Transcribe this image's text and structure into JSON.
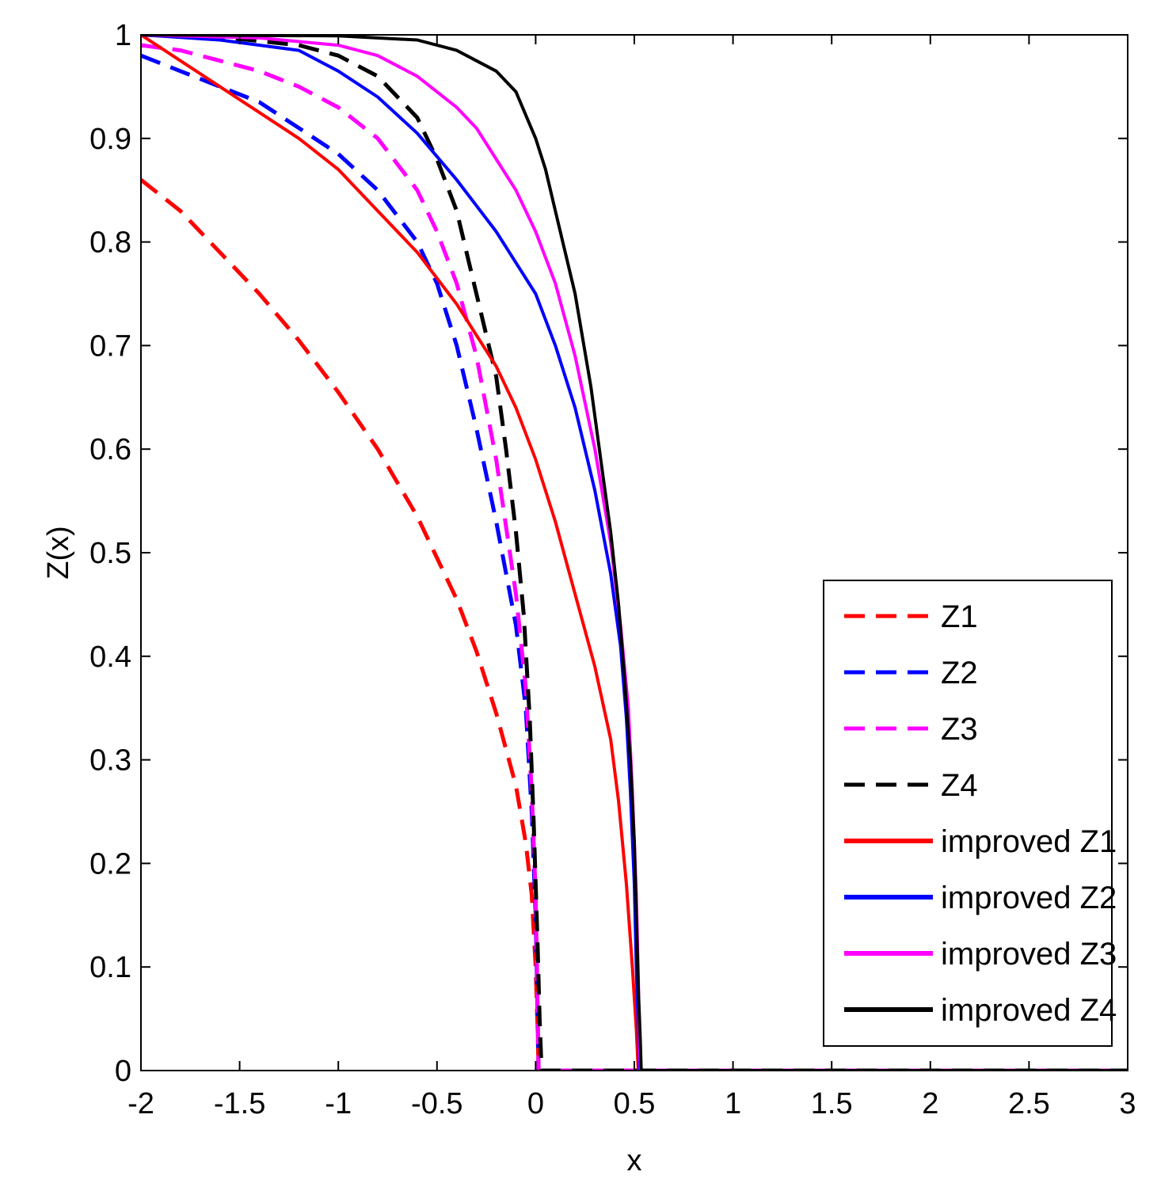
{
  "chart_data": {
    "type": "line",
    "title": "",
    "xlabel": "x",
    "ylabel": "Z(x)",
    "xlim": [
      -2,
      3
    ],
    "ylim": [
      0,
      1
    ],
    "xticks": [
      "-2",
      "-1.5",
      "-1",
      "-0.5",
      "0",
      "0.5",
      "1",
      "1.5",
      "2",
      "2.5",
      "3"
    ],
    "yticks": [
      "0",
      "0.1",
      "0.2",
      "0.3",
      "0.4",
      "0.5",
      "0.6",
      "0.7",
      "0.8",
      "0.9",
      "1"
    ],
    "grid": false,
    "legend_position": "bottom-right",
    "series": [
      {
        "name": "Z1",
        "color": "#ff0000",
        "style": "dashed",
        "points": [
          [
            -2,
            0.86
          ],
          [
            -1.8,
            0.83
          ],
          [
            -1.6,
            0.79
          ],
          [
            -1.4,
            0.75
          ],
          [
            -1.2,
            0.705
          ],
          [
            -1.0,
            0.655
          ],
          [
            -0.8,
            0.6
          ],
          [
            -0.6,
            0.535
          ],
          [
            -0.4,
            0.455
          ],
          [
            -0.3,
            0.405
          ],
          [
            -0.2,
            0.345
          ],
          [
            -0.1,
            0.275
          ],
          [
            -0.05,
            0.22
          ],
          [
            -0.02,
            0.17
          ],
          [
            0.0,
            0.1
          ],
          [
            0.01,
            0.04
          ],
          [
            0.015,
            0.0
          ],
          [
            3,
            0.0
          ]
        ]
      },
      {
        "name": "Z2",
        "color": "#0000ff",
        "style": "dashed",
        "points": [
          [
            -2,
            0.98
          ],
          [
            -1.8,
            0.965
          ],
          [
            -1.6,
            0.95
          ],
          [
            -1.4,
            0.935
          ],
          [
            -1.2,
            0.91
          ],
          [
            -1.0,
            0.885
          ],
          [
            -0.8,
            0.85
          ],
          [
            -0.6,
            0.8
          ],
          [
            -0.5,
            0.76
          ],
          [
            -0.4,
            0.7
          ],
          [
            -0.3,
            0.62
          ],
          [
            -0.2,
            0.53
          ],
          [
            -0.1,
            0.43
          ],
          [
            -0.05,
            0.35
          ],
          [
            -0.02,
            0.25
          ],
          [
            0.0,
            0.15
          ],
          [
            0.01,
            0.05
          ],
          [
            0.015,
            0.0
          ],
          [
            3,
            0.0
          ]
        ]
      },
      {
        "name": "Z3",
        "color": "#ff00ff",
        "style": "dashed",
        "points": [
          [
            -2,
            0.99
          ],
          [
            -1.8,
            0.985
          ],
          [
            -1.6,
            0.975
          ],
          [
            -1.4,
            0.965
          ],
          [
            -1.2,
            0.95
          ],
          [
            -1.0,
            0.93
          ],
          [
            -0.8,
            0.9
          ],
          [
            -0.6,
            0.85
          ],
          [
            -0.5,
            0.81
          ],
          [
            -0.4,
            0.76
          ],
          [
            -0.3,
            0.69
          ],
          [
            -0.2,
            0.59
          ],
          [
            -0.1,
            0.46
          ],
          [
            -0.05,
            0.37
          ],
          [
            -0.02,
            0.27
          ],
          [
            0.0,
            0.17
          ],
          [
            0.01,
            0.06
          ],
          [
            0.015,
            0.0
          ],
          [
            3,
            0.0
          ]
        ]
      },
      {
        "name": "Z4",
        "color": "#000000",
        "style": "dashed",
        "points": [
          [
            -2,
            1.0
          ],
          [
            -1.6,
            0.998
          ],
          [
            -1.2,
            0.99
          ],
          [
            -1.0,
            0.98
          ],
          [
            -0.8,
            0.96
          ],
          [
            -0.6,
            0.92
          ],
          [
            -0.5,
            0.88
          ],
          [
            -0.4,
            0.83
          ],
          [
            -0.3,
            0.75
          ],
          [
            -0.2,
            0.67
          ],
          [
            -0.15,
            0.6
          ],
          [
            -0.1,
            0.52
          ],
          [
            -0.06,
            0.44
          ],
          [
            -0.03,
            0.34
          ],
          [
            -0.01,
            0.24
          ],
          [
            0.01,
            0.12
          ],
          [
            0.02,
            0.05
          ],
          [
            0.03,
            0.0
          ],
          [
            3,
            0.0
          ]
        ]
      },
      {
        "name": "improved Z1",
        "color": "#ff0000",
        "style": "solid",
        "points": [
          [
            -2,
            1.0
          ],
          [
            -1.8,
            0.975
          ],
          [
            -1.6,
            0.95
          ],
          [
            -1.4,
            0.925
          ],
          [
            -1.2,
            0.9
          ],
          [
            -1.0,
            0.87
          ],
          [
            -0.8,
            0.83
          ],
          [
            -0.6,
            0.79
          ],
          [
            -0.4,
            0.74
          ],
          [
            -0.3,
            0.71
          ],
          [
            -0.2,
            0.68
          ],
          [
            -0.1,
            0.64
          ],
          [
            0.0,
            0.59
          ],
          [
            0.1,
            0.53
          ],
          [
            0.2,
            0.46
          ],
          [
            0.3,
            0.39
          ],
          [
            0.38,
            0.32
          ],
          [
            0.42,
            0.26
          ],
          [
            0.46,
            0.18
          ],
          [
            0.49,
            0.1
          ],
          [
            0.51,
            0.04
          ],
          [
            0.52,
            0.0
          ],
          [
            3,
            0.0
          ]
        ]
      },
      {
        "name": "improved Z2",
        "color": "#0000ff",
        "style": "solid",
        "points": [
          [
            -2,
            1.0
          ],
          [
            -1.6,
            0.995
          ],
          [
            -1.2,
            0.985
          ],
          [
            -1.0,
            0.965
          ],
          [
            -0.8,
            0.94
          ],
          [
            -0.6,
            0.905
          ],
          [
            -0.4,
            0.86
          ],
          [
            -0.2,
            0.81
          ],
          [
            -0.1,
            0.78
          ],
          [
            0.0,
            0.75
          ],
          [
            0.1,
            0.7
          ],
          [
            0.2,
            0.64
          ],
          [
            0.3,
            0.56
          ],
          [
            0.38,
            0.48
          ],
          [
            0.43,
            0.41
          ],
          [
            0.46,
            0.34
          ],
          [
            0.48,
            0.27
          ],
          [
            0.5,
            0.18
          ],
          [
            0.51,
            0.1
          ],
          [
            0.52,
            0.04
          ],
          [
            0.525,
            0.0
          ],
          [
            3,
            0.0
          ]
        ]
      },
      {
        "name": "improved Z3",
        "color": "#ff00ff",
        "style": "solid",
        "points": [
          [
            -2,
            1.0
          ],
          [
            -1.4,
            0.997
          ],
          [
            -1.0,
            0.99
          ],
          [
            -0.8,
            0.98
          ],
          [
            -0.6,
            0.96
          ],
          [
            -0.4,
            0.93
          ],
          [
            -0.3,
            0.91
          ],
          [
            -0.2,
            0.88
          ],
          [
            -0.1,
            0.85
          ],
          [
            0.0,
            0.81
          ],
          [
            0.1,
            0.76
          ],
          [
            0.2,
            0.69
          ],
          [
            0.3,
            0.6
          ],
          [
            0.38,
            0.51
          ],
          [
            0.43,
            0.43
          ],
          [
            0.47,
            0.35
          ],
          [
            0.49,
            0.27
          ],
          [
            0.51,
            0.17
          ],
          [
            0.52,
            0.09
          ],
          [
            0.525,
            0.03
          ],
          [
            0.53,
            0.0
          ],
          [
            3,
            0.0
          ]
        ]
      },
      {
        "name": "improved Z4",
        "color": "#000000",
        "style": "solid",
        "points": [
          [
            -2,
            1.0
          ],
          [
            -1.0,
            0.999
          ],
          [
            -0.6,
            0.995
          ],
          [
            -0.4,
            0.985
          ],
          [
            -0.3,
            0.975
          ],
          [
            -0.2,
            0.965
          ],
          [
            -0.1,
            0.945
          ],
          [
            0.0,
            0.9
          ],
          [
            0.05,
            0.87
          ],
          [
            0.1,
            0.83
          ],
          [
            0.2,
            0.75
          ],
          [
            0.28,
            0.66
          ],
          [
            0.33,
            0.59
          ],
          [
            0.38,
            0.52
          ],
          [
            0.42,
            0.45
          ],
          [
            0.45,
            0.38
          ],
          [
            0.48,
            0.3
          ],
          [
            0.5,
            0.22
          ],
          [
            0.51,
            0.15
          ],
          [
            0.52,
            0.08
          ],
          [
            0.53,
            0.03
          ],
          [
            0.535,
            0.0
          ],
          [
            3,
            0.0
          ]
        ]
      }
    ]
  }
}
